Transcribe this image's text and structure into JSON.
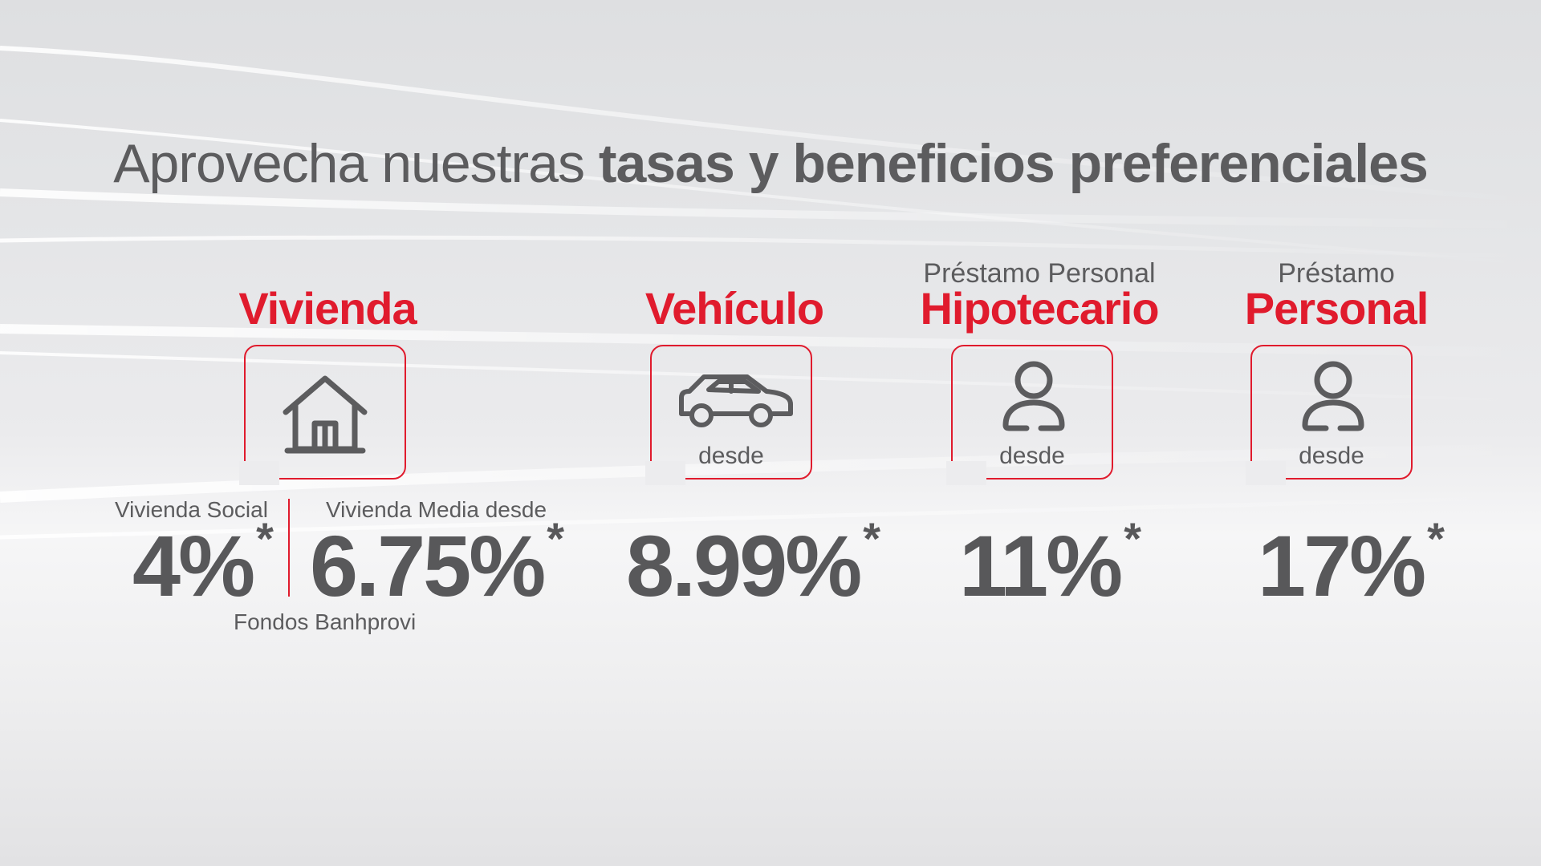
{
  "headline": {
    "regular": "Aprovecha nuestras ",
    "bold": "tasas y beneficios preferenciales"
  },
  "colors": {
    "accent": "#e01b2d",
    "text": "#58585a"
  },
  "products": [
    {
      "title": "Vivienda",
      "icon": "house-icon",
      "rates": [
        {
          "label": "Vivienda Social",
          "value": "4%",
          "note": "*"
        },
        {
          "label": "Vivienda Media desde",
          "value": "6.75%",
          "note": "*"
        }
      ],
      "footnote": "Fondos Banhprovi"
    },
    {
      "title": "Vehículo",
      "icon": "car-icon",
      "from_label": "desde",
      "rate": {
        "value": "8.99%",
        "note": "*"
      }
    },
    {
      "subtitle": "Préstamo Personal",
      "title": "Hipotecario",
      "icon": "user-icon",
      "from_label": "desde",
      "rate": {
        "value": "11%",
        "note": "*"
      }
    },
    {
      "subtitle": "Préstamo",
      "title": "Personal",
      "icon": "user-icon",
      "from_label": "desde",
      "rate": {
        "value": "17%",
        "note": "*"
      }
    }
  ]
}
